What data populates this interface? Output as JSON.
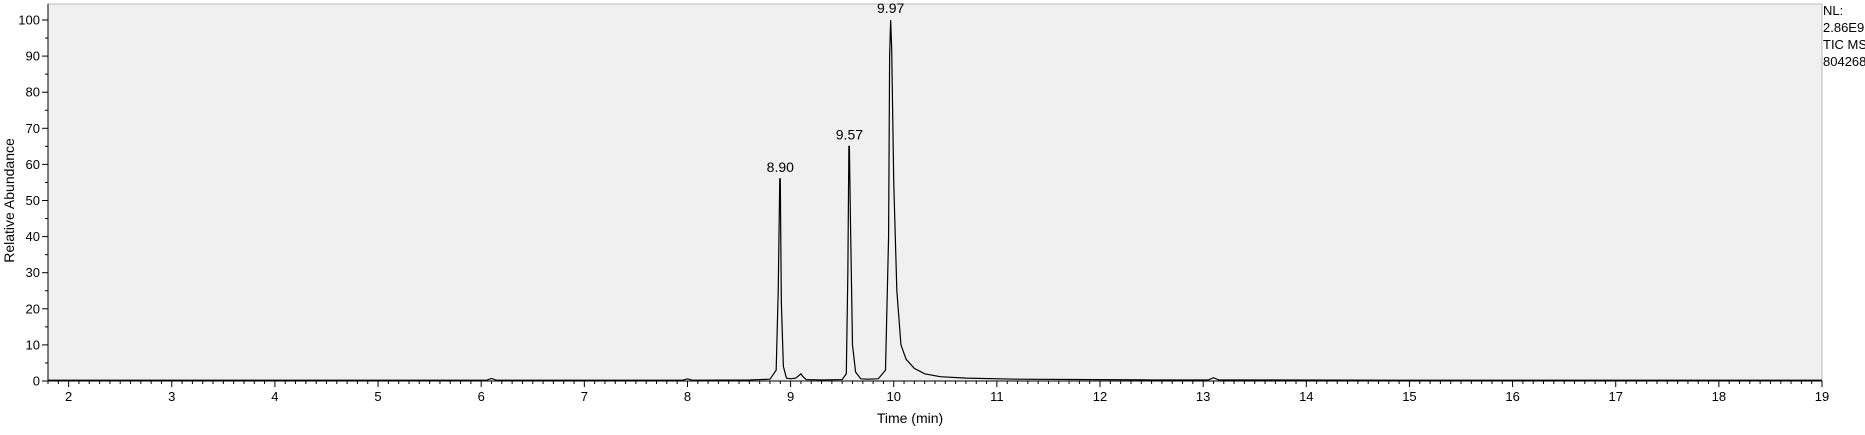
{
  "chart_data": {
    "type": "line",
    "title": "",
    "xlabel": "Time (min)",
    "ylabel": "Relative Abundance",
    "xlim": [
      1.8,
      19.0
    ],
    "ylim": [
      0,
      100
    ],
    "x_ticks": [
      2,
      3,
      4,
      5,
      6,
      7,
      8,
      9,
      10,
      11,
      12,
      13,
      14,
      15,
      16,
      17,
      18,
      19
    ],
    "y_ticks": [
      0,
      10,
      20,
      30,
      40,
      50,
      60,
      70,
      80,
      90,
      100
    ],
    "grid": false,
    "plot_background": "#f0f0f0",
    "line_color": "#000000",
    "series": [
      {
        "x": [
          1.8,
          5.0,
          6.05,
          6.1,
          6.15,
          7.95,
          8.0,
          8.05,
          8.6,
          8.8,
          8.86,
          8.88,
          8.895,
          8.9,
          8.91,
          8.93,
          8.96,
          9.0,
          9.05,
          9.08,
          9.1,
          9.12,
          9.15,
          9.3,
          9.5,
          9.54,
          9.555,
          9.565,
          9.57,
          9.58,
          9.6,
          9.63,
          9.68,
          9.75,
          9.85,
          9.92,
          9.95,
          9.96,
          9.97,
          9.98,
          10.0,
          10.03,
          10.07,
          10.12,
          10.2,
          10.3,
          10.45,
          10.7,
          11.2,
          12.5,
          13.05,
          13.1,
          13.15,
          15.0,
          19.0
        ],
        "y": [
          0.2,
          0.2,
          0.2,
          0.7,
          0.2,
          0.2,
          0.6,
          0.2,
          0.3,
          0.5,
          3,
          25,
          56,
          56,
          22,
          4,
          0.8,
          0.6,
          0.8,
          1.5,
          2.0,
          1.2,
          0.4,
          0.3,
          0.4,
          2,
          30,
          65,
          65,
          45,
          10,
          2.5,
          0.6,
          0.5,
          0.6,
          3,
          40,
          90,
          100,
          92,
          55,
          25,
          10,
          6,
          3.5,
          2.0,
          1.2,
          0.8,
          0.5,
          0.3,
          0.3,
          0.9,
          0.3,
          0.2,
          0.2
        ]
      }
    ],
    "peak_labels": [
      {
        "x": 8.9,
        "y": 56,
        "text": "8.90"
      },
      {
        "x": 9.57,
        "y": 65,
        "text": "9.57"
      },
      {
        "x": 9.97,
        "y": 100,
        "text": "9.97"
      }
    ]
  },
  "info": {
    "line1": "NL:",
    "line2": "2.86E9",
    "line3": "TIC  MS",
    "line4": "804268"
  }
}
